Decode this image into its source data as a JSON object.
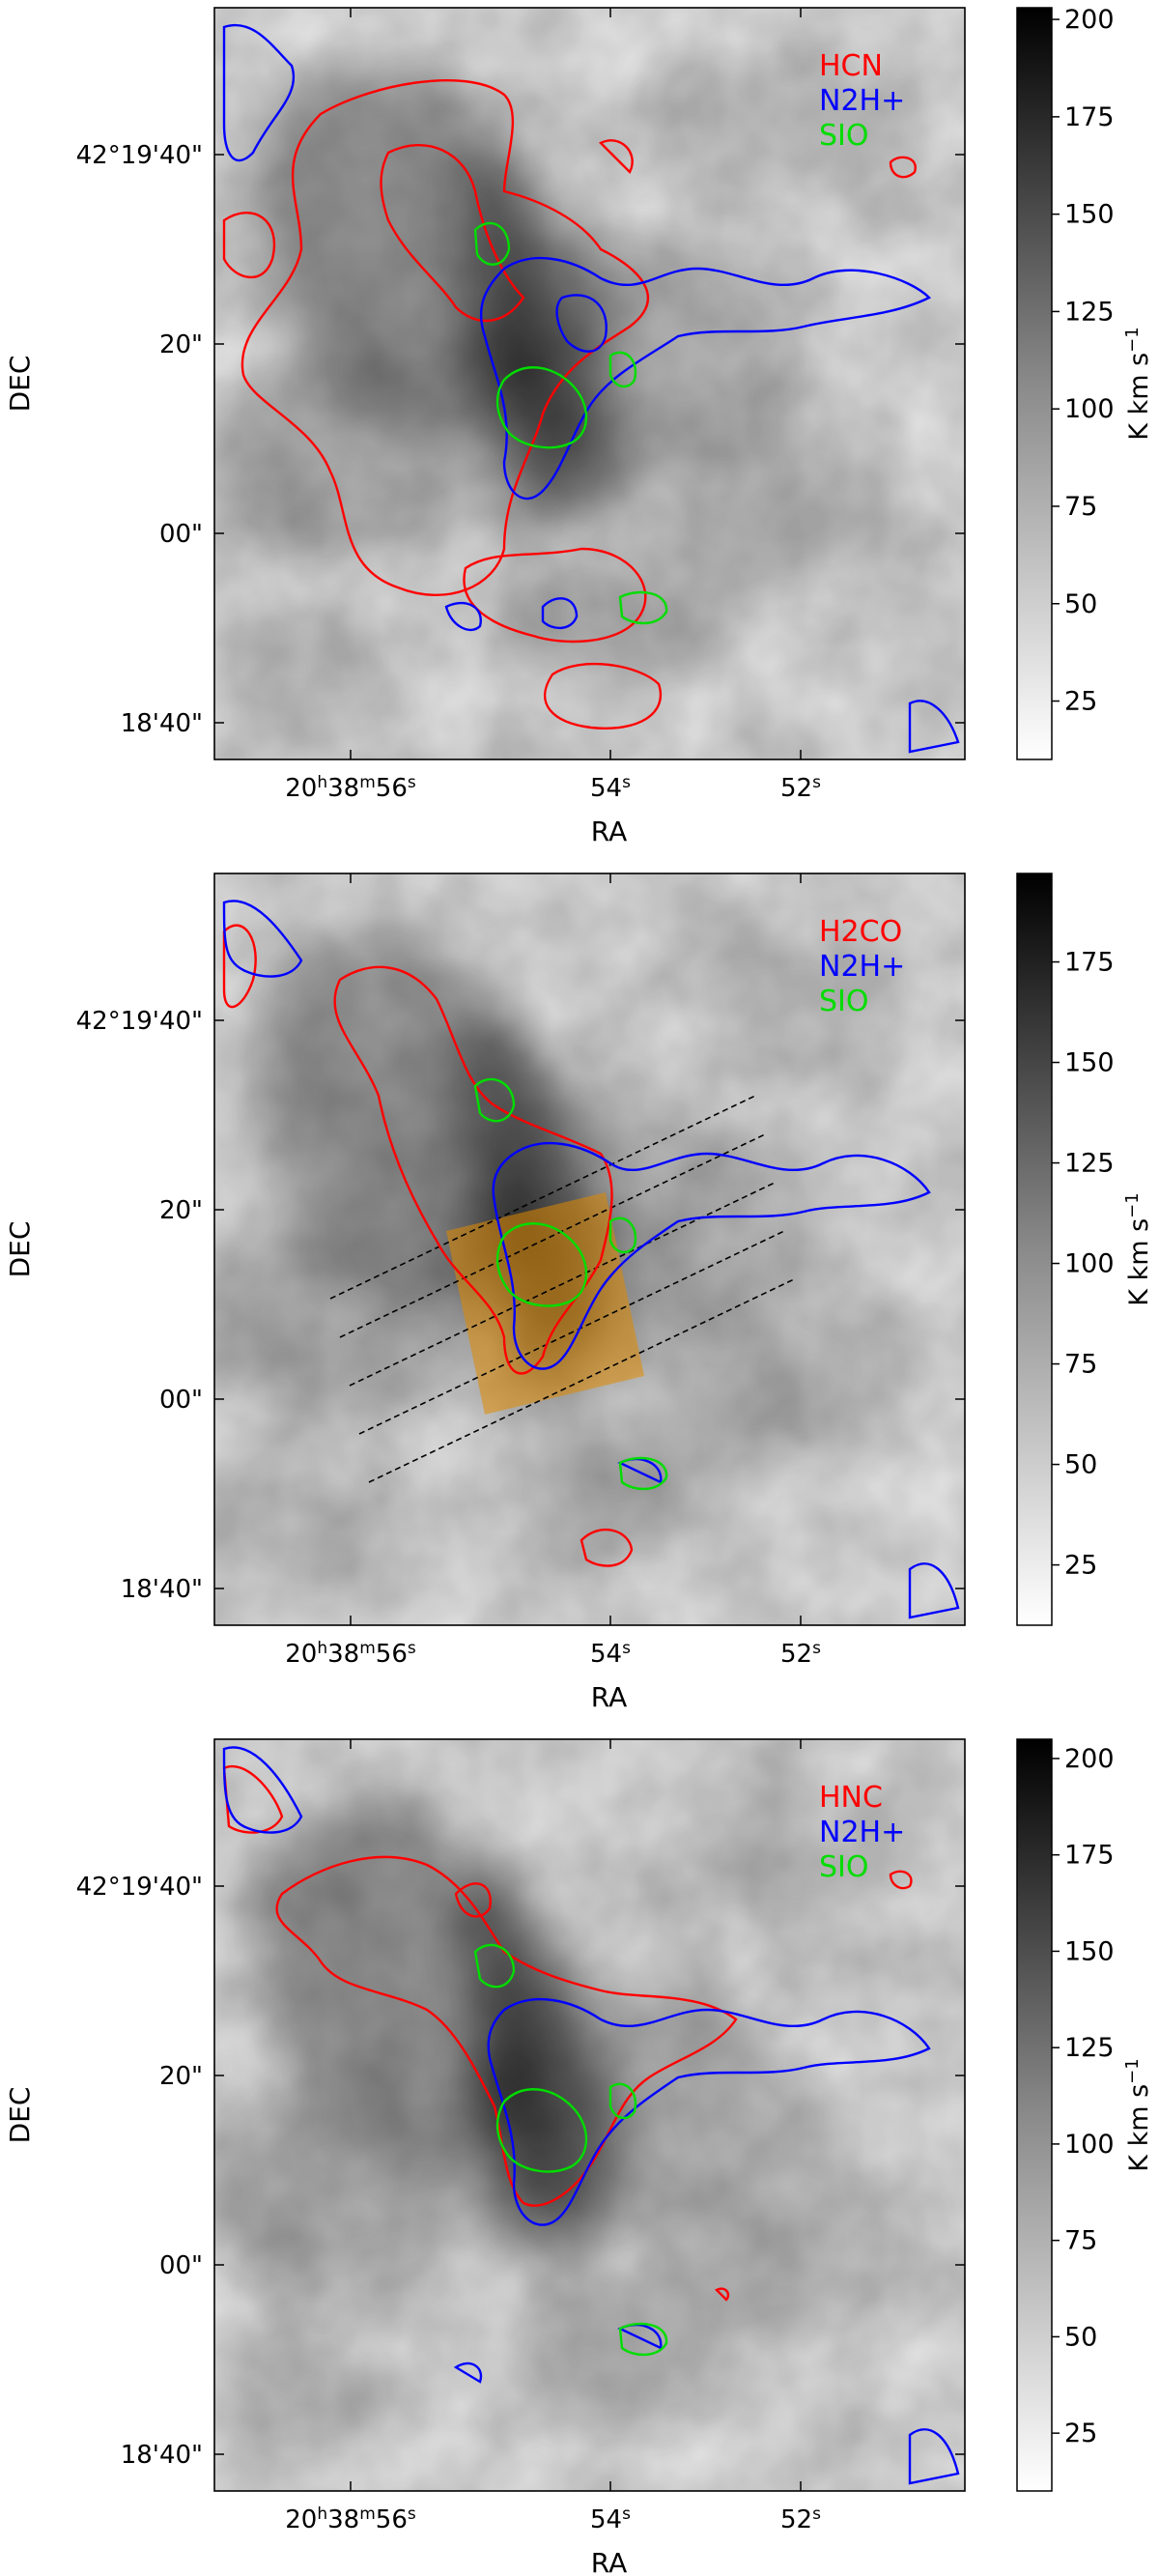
{
  "figure": {
    "xlabel": "RA",
    "ylabel": "DEC",
    "x_tick_labels": [
      "20h38m56s",
      "54s",
      "52s"
    ],
    "y_tick_labels": [
      "42°19'40\"",
      "20\"",
      "00\"",
      "18'40\""
    ],
    "colorbar_label": "K km s-1",
    "contour_colors": {
      "red": "#ff0000",
      "blue": "#0000ff",
      "green": "#00dd00"
    }
  },
  "chart_data": [
    {
      "type": "heatmap",
      "title": "",
      "xlabel": "RA",
      "ylabel": "DEC",
      "x_ticks": [
        "20h38m56s",
        "54s",
        "52s"
      ],
      "y_ticks": [
        "42°19'40\"",
        "20\"",
        "00\"",
        "18'40\""
      ],
      "colormap": "Greys",
      "colorbar": {
        "label": "K km s-1",
        "min": 10,
        "max": 203,
        "ticks": [
          25,
          50,
          75,
          100,
          125,
          150,
          175,
          200
        ]
      },
      "legend": {
        "placement": "top-right",
        "entries": [
          {
            "name": "HCN",
            "color": "#ff0000"
          },
          {
            "name": "N2H+",
            "color": "#0000ff"
          },
          {
            "name": "SIO",
            "color": "#00dd00"
          }
        ]
      }
    },
    {
      "type": "heatmap",
      "title": "",
      "xlabel": "RA",
      "ylabel": "DEC",
      "x_ticks": [
        "20h38m56s",
        "54s",
        "52s"
      ],
      "y_ticks": [
        "42°19'40\"",
        "20\"",
        "00\"",
        "18'40\""
      ],
      "colormap": "Greys",
      "colorbar": {
        "label": "K km s-1",
        "min": 10,
        "max": 197,
        "ticks": [
          25,
          50,
          75,
          100,
          125,
          150,
          175
        ]
      },
      "legend": {
        "placement": "top-right",
        "entries": [
          {
            "name": "H2CO",
            "color": "#ff0000"
          },
          {
            "name": "N2H+",
            "color": "#0000ff"
          },
          {
            "name": "SIO",
            "color": "#00dd00"
          }
        ]
      },
      "annotations": [
        "five parallel dashed cut lines",
        "orange shaded rectangular region"
      ]
    },
    {
      "type": "heatmap",
      "title": "",
      "xlabel": "RA",
      "ylabel": "DEC",
      "x_ticks": [
        "20h38m56s",
        "54s",
        "52s"
      ],
      "y_ticks": [
        "42°19'40\"",
        "20\"",
        "00\"",
        "18'40\""
      ],
      "colormap": "Greys",
      "colorbar": {
        "label": "K km s-1",
        "min": 10,
        "max": 205,
        "ticks": [
          25,
          50,
          75,
          100,
          125,
          150,
          175,
          200
        ]
      },
      "legend": {
        "placement": "top-right",
        "entries": [
          {
            "name": "HNC",
            "color": "#ff0000"
          },
          {
            "name": "N2H+",
            "color": "#0000ff"
          },
          {
            "name": "SIO",
            "color": "#00dd00"
          }
        ]
      }
    }
  ]
}
